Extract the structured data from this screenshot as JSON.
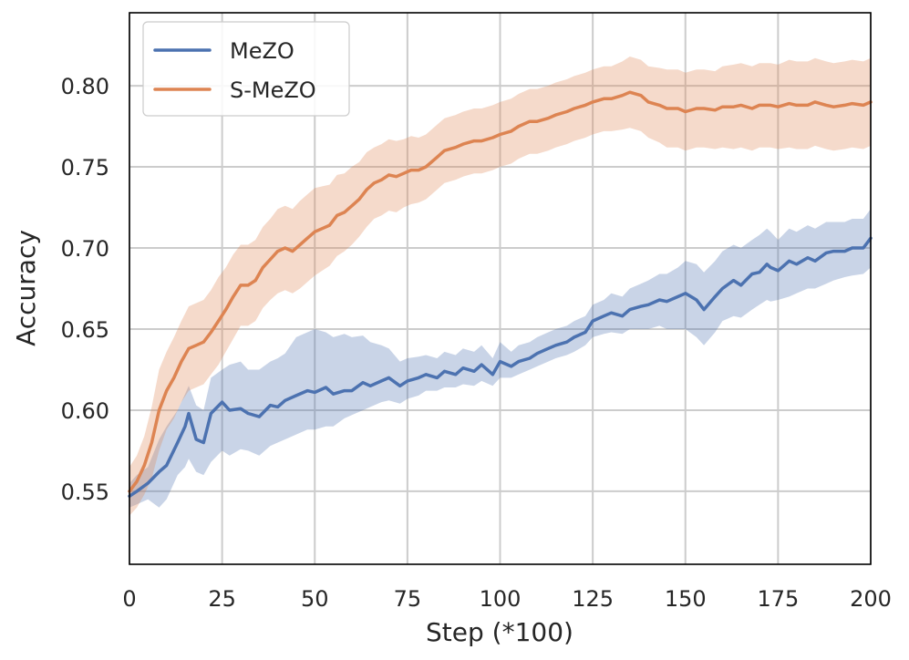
{
  "chart_data": {
    "type": "line",
    "title": "",
    "xlabel": "Step (*100)",
    "ylabel": "Accuracy",
    "xlim": [
      0,
      200
    ],
    "ylim": [
      0.505,
      0.845
    ],
    "xticks": [
      0,
      25,
      50,
      75,
      100,
      125,
      150,
      175,
      200
    ],
    "yticks": [
      0.55,
      0.6,
      0.65,
      0.7,
      0.75,
      0.8
    ],
    "xtick_labels": [
      "0",
      "25",
      "50",
      "75",
      "100",
      "125",
      "150",
      "175",
      "200"
    ],
    "ytick_labels": [
      "0.55",
      "0.60",
      "0.65",
      "0.70",
      "0.75",
      "0.80"
    ],
    "grid": true,
    "legend_position": "top-left",
    "series": [
      {
        "name": "MeZO",
        "color": "#4c72b0",
        "x": [
          0,
          2,
          5,
          8,
          10,
          13,
          15,
          16,
          18,
          20,
          22,
          25,
          27,
          30,
          32,
          35,
          38,
          40,
          42,
          45,
          48,
          50,
          53,
          55,
          58,
          60,
          63,
          65,
          68,
          70,
          73,
          75,
          78,
          80,
          83,
          85,
          88,
          90,
          93,
          95,
          98,
          100,
          103,
          105,
          108,
          110,
          113,
          115,
          118,
          120,
          123,
          125,
          128,
          130,
          133,
          135,
          138,
          140,
          143,
          145,
          148,
          150,
          153,
          155,
          158,
          160,
          163,
          165,
          168,
          170,
          172,
          173,
          175,
          178,
          180,
          183,
          185,
          188,
          190,
          193,
          195,
          198,
          200
        ],
        "y": [
          0.547,
          0.55,
          0.555,
          0.562,
          0.566,
          0.58,
          0.59,
          0.598,
          0.582,
          0.58,
          0.598,
          0.605,
          0.6,
          0.601,
          0.598,
          0.596,
          0.603,
          0.602,
          0.606,
          0.609,
          0.612,
          0.611,
          0.614,
          0.61,
          0.612,
          0.612,
          0.617,
          0.615,
          0.618,
          0.62,
          0.615,
          0.618,
          0.62,
          0.622,
          0.62,
          0.624,
          0.622,
          0.626,
          0.624,
          0.628,
          0.622,
          0.63,
          0.627,
          0.63,
          0.632,
          0.635,
          0.638,
          0.64,
          0.642,
          0.645,
          0.648,
          0.655,
          0.658,
          0.66,
          0.658,
          0.662,
          0.664,
          0.665,
          0.668,
          0.667,
          0.67,
          0.672,
          0.668,
          0.662,
          0.67,
          0.675,
          0.68,
          0.677,
          0.684,
          0.685,
          0.69,
          0.688,
          0.686,
          0.692,
          0.69,
          0.694,
          0.692,
          0.697,
          0.698,
          0.698,
          0.7,
          0.7,
          0.706
        ],
        "lower": [
          0.54,
          0.542,
          0.545,
          0.54,
          0.545,
          0.56,
          0.565,
          0.57,
          0.562,
          0.56,
          0.568,
          0.575,
          0.572,
          0.576,
          0.575,
          0.572,
          0.578,
          0.58,
          0.582,
          0.585,
          0.588,
          0.588,
          0.59,
          0.59,
          0.595,
          0.597,
          0.6,
          0.602,
          0.605,
          0.606,
          0.604,
          0.607,
          0.609,
          0.612,
          0.612,
          0.614,
          0.614,
          0.616,
          0.615,
          0.618,
          0.615,
          0.62,
          0.62,
          0.622,
          0.625,
          0.627,
          0.63,
          0.632,
          0.634,
          0.636,
          0.64,
          0.645,
          0.647,
          0.648,
          0.647,
          0.65,
          0.65,
          0.65,
          0.652,
          0.65,
          0.65,
          0.65,
          0.645,
          0.64,
          0.648,
          0.655,
          0.658,
          0.657,
          0.662,
          0.665,
          0.668,
          0.667,
          0.668,
          0.67,
          0.672,
          0.675,
          0.675,
          0.678,
          0.68,
          0.682,
          0.683,
          0.684,
          0.688
        ],
        "upper": [
          0.555,
          0.56,
          0.565,
          0.582,
          0.59,
          0.6,
          0.61,
          0.615,
          0.603,
          0.6,
          0.62,
          0.625,
          0.628,
          0.63,
          0.625,
          0.625,
          0.63,
          0.632,
          0.635,
          0.645,
          0.648,
          0.65,
          0.648,
          0.645,
          0.647,
          0.645,
          0.646,
          0.642,
          0.64,
          0.638,
          0.63,
          0.632,
          0.633,
          0.634,
          0.632,
          0.636,
          0.634,
          0.638,
          0.636,
          0.64,
          0.632,
          0.642,
          0.636,
          0.64,
          0.642,
          0.645,
          0.648,
          0.65,
          0.652,
          0.655,
          0.658,
          0.665,
          0.668,
          0.672,
          0.67,
          0.675,
          0.678,
          0.68,
          0.684,
          0.684,
          0.688,
          0.692,
          0.69,
          0.685,
          0.692,
          0.698,
          0.702,
          0.7,
          0.705,
          0.708,
          0.712,
          0.71,
          0.705,
          0.712,
          0.71,
          0.714,
          0.712,
          0.716,
          0.716,
          0.716,
          0.718,
          0.718,
          0.724
        ]
      },
      {
        "name": "S-MeZO",
        "color": "#dd8452",
        "x": [
          0,
          2,
          4,
          6,
          8,
          10,
          12,
          14,
          16,
          18,
          20,
          22,
          24,
          26,
          28,
          30,
          32,
          34,
          36,
          38,
          40,
          42,
          44,
          46,
          48,
          50,
          52,
          54,
          56,
          58,
          60,
          62,
          64,
          66,
          68,
          70,
          72,
          74,
          76,
          78,
          80,
          83,
          85,
          88,
          90,
          93,
          95,
          98,
          100,
          103,
          105,
          108,
          110,
          113,
          115,
          118,
          120,
          123,
          125,
          128,
          130,
          133,
          135,
          138,
          140,
          143,
          145,
          148,
          150,
          153,
          155,
          158,
          160,
          163,
          165,
          168,
          170,
          173,
          175,
          178,
          180,
          183,
          185,
          188,
          190,
          193,
          195,
          198,
          200
        ],
        "y": [
          0.55,
          0.556,
          0.566,
          0.58,
          0.6,
          0.612,
          0.62,
          0.63,
          0.638,
          0.64,
          0.642,
          0.648,
          0.655,
          0.662,
          0.67,
          0.677,
          0.677,
          0.68,
          0.688,
          0.693,
          0.698,
          0.7,
          0.698,
          0.702,
          0.706,
          0.71,
          0.712,
          0.714,
          0.72,
          0.722,
          0.726,
          0.73,
          0.736,
          0.74,
          0.742,
          0.745,
          0.744,
          0.746,
          0.748,
          0.748,
          0.75,
          0.756,
          0.76,
          0.762,
          0.764,
          0.766,
          0.766,
          0.768,
          0.77,
          0.772,
          0.775,
          0.778,
          0.778,
          0.78,
          0.782,
          0.784,
          0.786,
          0.788,
          0.79,
          0.792,
          0.792,
          0.794,
          0.796,
          0.794,
          0.79,
          0.788,
          0.786,
          0.786,
          0.784,
          0.786,
          0.786,
          0.785,
          0.787,
          0.787,
          0.788,
          0.786,
          0.788,
          0.788,
          0.787,
          0.789,
          0.788,
          0.788,
          0.79,
          0.788,
          0.787,
          0.788,
          0.789,
          0.788,
          0.79
        ],
        "lower": [
          0.535,
          0.54,
          0.548,
          0.558,
          0.575,
          0.588,
          0.595,
          0.605,
          0.612,
          0.614,
          0.616,
          0.622,
          0.628,
          0.636,
          0.644,
          0.652,
          0.652,
          0.655,
          0.663,
          0.668,
          0.672,
          0.674,
          0.672,
          0.675,
          0.679,
          0.683,
          0.686,
          0.689,
          0.695,
          0.698,
          0.702,
          0.707,
          0.713,
          0.718,
          0.72,
          0.723,
          0.722,
          0.725,
          0.727,
          0.728,
          0.73,
          0.736,
          0.74,
          0.742,
          0.744,
          0.746,
          0.746,
          0.748,
          0.75,
          0.752,
          0.755,
          0.758,
          0.758,
          0.76,
          0.762,
          0.764,
          0.766,
          0.768,
          0.77,
          0.772,
          0.772,
          0.773,
          0.774,
          0.772,
          0.768,
          0.765,
          0.762,
          0.762,
          0.76,
          0.762,
          0.762,
          0.761,
          0.762,
          0.761,
          0.762,
          0.76,
          0.762,
          0.762,
          0.761,
          0.762,
          0.761,
          0.761,
          0.763,
          0.761,
          0.76,
          0.761,
          0.762,
          0.761,
          0.763
        ],
        "upper": [
          0.565,
          0.572,
          0.584,
          0.602,
          0.625,
          0.636,
          0.645,
          0.655,
          0.664,
          0.666,
          0.668,
          0.674,
          0.682,
          0.688,
          0.696,
          0.702,
          0.702,
          0.705,
          0.713,
          0.718,
          0.724,
          0.726,
          0.724,
          0.729,
          0.733,
          0.737,
          0.738,
          0.739,
          0.745,
          0.746,
          0.75,
          0.753,
          0.759,
          0.762,
          0.764,
          0.767,
          0.766,
          0.767,
          0.769,
          0.768,
          0.77,
          0.776,
          0.78,
          0.782,
          0.784,
          0.786,
          0.786,
          0.788,
          0.79,
          0.792,
          0.795,
          0.798,
          0.798,
          0.8,
          0.802,
          0.804,
          0.806,
          0.808,
          0.81,
          0.812,
          0.812,
          0.815,
          0.818,
          0.816,
          0.812,
          0.811,
          0.81,
          0.81,
          0.808,
          0.81,
          0.81,
          0.809,
          0.812,
          0.813,
          0.814,
          0.812,
          0.814,
          0.814,
          0.813,
          0.816,
          0.815,
          0.815,
          0.817,
          0.815,
          0.814,
          0.815,
          0.816,
          0.815,
          0.817
        ]
      }
    ]
  }
}
